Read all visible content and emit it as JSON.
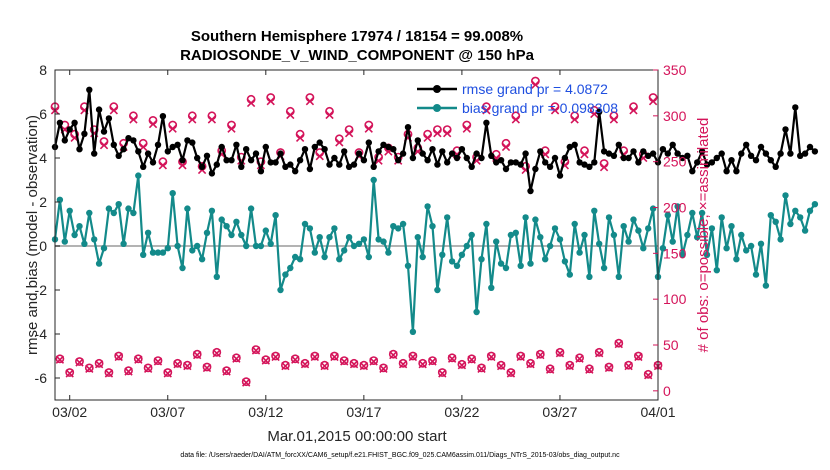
{
  "chart_data": {
    "type": "line",
    "title": "Southern Hemisphere 17974 / 18154 = 99.008%",
    "subtitle": "RADIOSONDE_V_WIND_COMPONENT @ 150 hPa",
    "xlabel": "Mar.01,2015 00:00:00 start",
    "ylabel": "rmse and bias (model - observation)",
    "ylabel_right": "# of obs: o=possible; ×=assimilated",
    "footnote": "data file: /Users/raeder/DAI/ATM_forcXX/CAM6_setup/f.e21.FHIST_BGC.f09_025.CAM6assim.011/Diags_NTrS_2015-03/obs_diag_output.nc",
    "x_range": [
      0.25,
      31.0
    ],
    "ylim": [
      -7,
      8
    ],
    "ylim_right": [
      -10,
      350
    ],
    "x_tick_labels": [
      {
        "x": 1,
        "label": "03/02"
      },
      {
        "x": 6,
        "label": "03/07"
      },
      {
        "x": 11,
        "label": "03/12"
      },
      {
        "x": 16,
        "label": "03/17"
      },
      {
        "x": 21,
        "label": "03/22"
      },
      {
        "x": 26,
        "label": "03/27"
      },
      {
        "x": 31,
        "label": "04/01"
      }
    ],
    "y_ticks": [
      "-6",
      "-4",
      "-2",
      "0",
      "2",
      "4",
      "6",
      "8"
    ],
    "y_ticks_right": [
      "0",
      "50",
      "100",
      "150",
      "200",
      "250",
      "300",
      "350"
    ],
    "legend": {
      "position": "top-right",
      "entries": [
        "rmse grand pr = 4.0872",
        "bias grand pr = 0.098308"
      ]
    },
    "series": [
      {
        "name": "rmse grand pr = 4.0872",
        "axis": "left",
        "color": "#000000",
        "marker": "filled-circle",
        "x_start": 0.25,
        "x_step": 0.25,
        "values": [
          4.5,
          5.6,
          4.8,
          5.3,
          5.6,
          4.4,
          5.1,
          7.1,
          4.2,
          6.2,
          5.2,
          5.8,
          4.6,
          4.1,
          4.4,
          4.9,
          4.8,
          4.3,
          3.6,
          4.2,
          3.8,
          4.6,
          5.9,
          4.3,
          4.5,
          4.6,
          3.9,
          4.8,
          4.7,
          4.0,
          3.6,
          4.1,
          3.3,
          3.7,
          4.5,
          3.9,
          3.9,
          4.6,
          3.6,
          4.4,
          3.9,
          4.2,
          3.4,
          4.5,
          3.8,
          3.8,
          4.2,
          3.6,
          3.7,
          3.4,
          3.9,
          4.4,
          3.5,
          4.5,
          4.7,
          4.4,
          3.7,
          4.0,
          3.7,
          4.3,
          3.6,
          3.7,
          4.2,
          3.9,
          4.7,
          3.6,
          4.3,
          4.6,
          4.5,
          4.4,
          3.9,
          4.2,
          5.4,
          4.0,
          4.8,
          4.2,
          3.9,
          4.4,
          3.7,
          4.3,
          3.8,
          4.2,
          4.0,
          4.4,
          4.0,
          3.6,
          4.2,
          4.0,
          5.6,
          4.1,
          3.8,
          3.9,
          3.5,
          3.8,
          3.8,
          3.7,
          4.2,
          2.5,
          3.5,
          4.3,
          3.8,
          3.6,
          4.0,
          3.2,
          4.0,
          4.5,
          4.6,
          3.8,
          3.7,
          3.6,
          3.8,
          6.1,
          4.3,
          4.2,
          4.1,
          4.6,
          4.0,
          4.0,
          4.3,
          3.8,
          4.3,
          4.1,
          4.2,
          3.8,
          4.4,
          4.2,
          4.6,
          4.2,
          4.0,
          4.1,
          3.4,
          3.8,
          4.3,
          3.7,
          3.8,
          4.0,
          4.2,
          3.4,
          3.9,
          3.4,
          4.2,
          4.6,
          4.1,
          3.9,
          4.5,
          4.2,
          3.9,
          3.6,
          4.2,
          5.3,
          4.2,
          6.3,
          4.1,
          4.2,
          4.5,
          4.3
        ]
      },
      {
        "name": "bias grand pr = 0.098308",
        "axis": "left",
        "color": "#138a8a",
        "marker": "filled-circle",
        "x_start": 0.25,
        "x_step": 0.25,
        "values": [
          0.3,
          2.1,
          0.2,
          1.6,
          0.5,
          0.9,
          0.1,
          1.5,
          0.3,
          -0.8,
          -0.1,
          1.7,
          1.5,
          1.9,
          0.1,
          1.7,
          1.5,
          3.2,
          -0.4,
          0.6,
          -0.3,
          -0.3,
          -0.3,
          -0.1,
          2.4,
          0.0,
          -1.0,
          1.7,
          -0.2,
          0.0,
          -0.6,
          0.6,
          1.6,
          -1.4,
          1.2,
          0.9,
          0.5,
          1.1,
          0.5,
          0.0,
          1.7,
          0.0,
          0.0,
          0.7,
          0.1,
          1.4,
          -2.0,
          -1.3,
          -1.0,
          -0.5,
          -0.6,
          1.0,
          0.8,
          -0.3,
          0.4,
          -0.5,
          0.4,
          0.8,
          -0.6,
          -0.2,
          0.4,
          0.0,
          0.1,
          0.3,
          -0.5,
          3.0,
          0.3,
          0.2,
          -0.3,
          0.9,
          0.8,
          1.0,
          -0.9,
          -3.9,
          0.4,
          -0.5,
          1.8,
          0.9,
          -2.0,
          -0.4,
          1.3,
          -0.7,
          -0.9,
          -0.4,
          0.0,
          0.5,
          -3.0,
          -0.6,
          1.0,
          -1.9,
          0.2,
          -0.8,
          -1.0,
          0.5,
          0.6,
          -0.9,
          1.3,
          -0.8,
          1.2,
          0.4,
          -0.6,
          0.0,
          0.8,
          0.3,
          -0.7,
          -1.3,
          1.0,
          -0.3,
          0.5,
          -1.4,
          1.6,
          0.1,
          -1.0,
          1.3,
          0.5,
          -1.4,
          0.9,
          0.2,
          1.2,
          0.7,
          -0.1,
          0.8,
          1.7,
          -1.4,
          -0.1,
          1.4,
          0.2,
          1.8,
          -0.4,
          0.5,
          1.5,
          0.4,
          1.5,
          -0.4,
          0.8,
          -1.1,
          1.3,
          -0.1,
          0.9,
          -0.6,
          0.5,
          -0.2,
          0.0,
          -1.3,
          0.1,
          -1.8,
          1.4,
          1.1,
          0.3,
          2.3,
          1.0,
          1.6,
          1.3,
          0.7,
          1.6,
          1.9
        ]
      },
      {
        "name": "possible",
        "axis": "right",
        "color": "#d4145a",
        "marker": "circle",
        "x": [
          0.25,
          0.5,
          0.75,
          1.0,
          1.25,
          1.5,
          1.75,
          2.0,
          2.25,
          2.5,
          2.75,
          3.0,
          3.25,
          3.5,
          3.75,
          4.0,
          4.25,
          4.5,
          4.75,
          5.0,
          5.25,
          5.5,
          5.75,
          6.0,
          6.25,
          6.5,
          6.75,
          7.0,
          7.25,
          7.5,
          7.75,
          8.0,
          8.25,
          8.5,
          8.75,
          9.0,
          9.25,
          9.5,
          9.75,
          10.0,
          10.25,
          10.5,
          10.75,
          11.0,
          11.25,
          11.5,
          11.75,
          12.0,
          12.25,
          12.5,
          12.75,
          13.0,
          13.25,
          13.5,
          13.75,
          14.0,
          14.25,
          14.5,
          14.75,
          15.0,
          15.25,
          15.5,
          15.75,
          16.0,
          16.25,
          16.5,
          16.75,
          17.0,
          17.25,
          17.5,
          17.75,
          18.0,
          18.25,
          18.5,
          18.75,
          19.0,
          19.25,
          19.5,
          19.75,
          20.0,
          20.25,
          20.5,
          20.75,
          21.0,
          21.25,
          21.5,
          21.75,
          22.0,
          22.25,
          22.5,
          22.75,
          23.0,
          23.25,
          23.5,
          23.75,
          24.0,
          24.25,
          24.5,
          24.75,
          25.0,
          25.25,
          25.5,
          25.75,
          26.0,
          26.25,
          26.5,
          26.75,
          27.0,
          27.25,
          27.5,
          27.75,
          28.0,
          28.25,
          28.5,
          28.75,
          29.0,
          29.25,
          29.5,
          29.75,
          30.0,
          30.25,
          30.5,
          30.75,
          31.0
        ],
        "values": [
          310,
          35,
          290,
          20,
          280,
          32,
          310,
          25,
          285,
          30,
          272,
          20,
          310,
          38,
          270,
          22,
          300,
          35,
          270,
          25,
          295,
          33,
          250,
          20,
          290,
          30,
          250,
          28,
          300,
          40,
          245,
          26,
          300,
          42,
          262,
          22,
          290,
          36,
          255,
          10,
          318,
          45,
          250,
          34,
          320,
          38,
          260,
          28,
          305,
          35,
          280,
          30,
          320,
          38,
          260,
          28,
          305,
          38,
          275,
          33,
          285,
          30,
          260,
          28,
          290,
          33,
          255,
          25,
          265,
          40,
          255,
          30,
          280,
          38,
          265,
          30,
          280,
          33,
          285,
          20,
          285,
          36,
          262,
          29,
          290,
          35,
          255,
          25,
          310,
          38,
          258,
          28,
          270,
          20,
          300,
          38,
          245,
          30,
          338,
          40,
          262,
          24,
          310,
          42,
          250,
          28,
          300,
          36,
          262,
          24,
          306,
          42,
          248,
          26,
          300,
          52,
          262,
          28,
          310,
          38,
          258,
          18,
          320,
          28
        ]
      },
      {
        "name": "assimilated",
        "axis": "right",
        "color": "#d4145a",
        "marker": "x",
        "x": [
          0.25,
          0.5,
          0.75,
          1.0,
          1.25,
          1.5,
          1.75,
          2.0,
          2.25,
          2.5,
          2.75,
          3.0,
          3.25,
          3.5,
          3.75,
          4.0,
          4.25,
          4.5,
          4.75,
          5.0,
          5.25,
          5.5,
          5.75,
          6.0,
          6.25,
          6.5,
          6.75,
          7.0,
          7.25,
          7.5,
          7.75,
          8.0,
          8.25,
          8.5,
          8.75,
          9.0,
          9.25,
          9.5,
          9.75,
          10.0,
          10.25,
          10.5,
          10.75,
          11.0,
          11.25,
          11.5,
          11.75,
          12.0,
          12.25,
          12.5,
          12.75,
          13.0,
          13.25,
          13.5,
          13.75,
          14.0,
          14.25,
          14.5,
          14.75,
          15.0,
          15.25,
          15.5,
          15.75,
          16.0,
          16.25,
          16.5,
          16.75,
          17.0,
          17.25,
          17.5,
          17.75,
          18.0,
          18.25,
          18.5,
          18.75,
          19.0,
          19.25,
          19.5,
          19.75,
          20.0,
          20.25,
          20.5,
          20.75,
          21.0,
          21.25,
          21.5,
          21.75,
          22.0,
          22.25,
          22.5,
          22.75,
          23.0,
          23.25,
          23.5,
          23.75,
          24.0,
          24.25,
          24.5,
          24.75,
          25.0,
          25.25,
          25.5,
          25.75,
          26.0,
          26.25,
          26.5,
          26.75,
          27.0,
          27.25,
          27.5,
          27.75,
          28.0,
          28.25,
          28.5,
          28.75,
          29.0,
          29.25,
          29.5,
          29.75,
          30.0,
          30.25,
          30.5,
          30.75,
          31.0
        ],
        "values": [
          306,
          34,
          285,
          19,
          276,
          31,
          306,
          24,
          281,
          29,
          268,
          19,
          306,
          37,
          266,
          21,
          296,
          34,
          266,
          24,
          291,
          32,
          246,
          19,
          286,
          29,
          246,
          27,
          296,
          39,
          241,
          25,
          296,
          41,
          258,
          21,
          286,
          35,
          251,
          9,
          314,
          44,
          246,
          33,
          316,
          37,
          256,
          27,
          301,
          34,
          276,
          29,
          316,
          37,
          256,
          27,
          301,
          37,
          271,
          32,
          281,
          29,
          256,
          27,
          286,
          32,
          251,
          24,
          261,
          39,
          251,
          29,
          276,
          37,
          261,
          29,
          276,
          32,
          281,
          19,
          281,
          35,
          258,
          28,
          286,
          34,
          251,
          24,
          306,
          37,
          254,
          27,
          266,
          19,
          296,
          37,
          241,
          29,
          334,
          39,
          258,
          23,
          306,
          41,
          246,
          27,
          296,
          35,
          258,
          23,
          302,
          41,
          244,
          25,
          296,
          51,
          258,
          27,
          306,
          37,
          254,
          17,
          316,
          27
        ]
      }
    ]
  }
}
